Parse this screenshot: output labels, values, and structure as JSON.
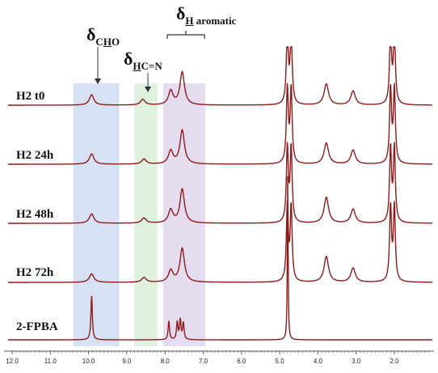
{
  "colors": {
    "trace": "#8b1a1a",
    "highlight_cho": "#c8d8f0",
    "highlight_hcn": "#d4ecd4",
    "highlight_aromatic": "#dcd0ea",
    "axis": "#555555"
  },
  "annotations": {
    "cho": {
      "delta": "δ",
      "sub": "CHO",
      "underline_char": "H"
    },
    "hcn": {
      "delta": "δ",
      "sub_u": "H",
      "sub_rest": "C=N"
    },
    "aromatic": {
      "delta": "δ",
      "sub_u": "H",
      "sub_rest": " aromatic"
    }
  },
  "chart_data": {
    "type": "line",
    "title": "",
    "xlabel": "",
    "ylabel": "",
    "x_reversed": true,
    "xlim": [
      12.3,
      1.3
    ],
    "x_ticks": [
      "12.0",
      "11.0",
      "10.0",
      "9.0",
      "8.0",
      "7.0",
      "6.0",
      "5.0",
      "4.0",
      "3.0",
      "2.0"
    ],
    "highlight_regions": [
      {
        "name": "CHO",
        "x": [
          10.4,
          9.2
        ]
      },
      {
        "name": "HC=N",
        "x": [
          8.8,
          8.2
        ]
      },
      {
        "name": "H aromatic",
        "x": [
          8.05,
          6.95
        ]
      }
    ],
    "series": [
      {
        "name": "H2 t0",
        "peaks": [
          {
            "ppm": 9.92,
            "h": 0.22
          },
          {
            "ppm": 8.58,
            "h": 0.12
          },
          {
            "ppm": 7.85,
            "h": 0.3
          },
          {
            "ppm": 7.55,
            "h": 0.7
          },
          {
            "ppm": 4.8,
            "h": 1.6
          },
          {
            "ppm": 4.7,
            "h": 1.6
          },
          {
            "ppm": 3.78,
            "h": 0.45
          },
          {
            "ppm": 3.08,
            "h": 0.3
          },
          {
            "ppm": 2.1,
            "h": 1.6
          },
          {
            "ppm": 2.0,
            "h": 1.6
          }
        ]
      },
      {
        "name": "H2 24h",
        "peaks": [
          {
            "ppm": 9.92,
            "h": 0.22
          },
          {
            "ppm": 8.55,
            "h": 0.11
          },
          {
            "ppm": 7.85,
            "h": 0.28
          },
          {
            "ppm": 7.55,
            "h": 0.72
          },
          {
            "ppm": 4.8,
            "h": 1.6
          },
          {
            "ppm": 4.7,
            "h": 1.6
          },
          {
            "ppm": 3.78,
            "h": 0.45
          },
          {
            "ppm": 3.08,
            "h": 0.3
          },
          {
            "ppm": 2.1,
            "h": 1.6
          },
          {
            "ppm": 2.0,
            "h": 1.6
          }
        ]
      },
      {
        "name": "H2 48h",
        "peaks": [
          {
            "ppm": 9.92,
            "h": 0.2
          },
          {
            "ppm": 8.55,
            "h": 0.11
          },
          {
            "ppm": 7.85,
            "h": 0.28
          },
          {
            "ppm": 7.55,
            "h": 0.72
          },
          {
            "ppm": 4.8,
            "h": 1.6
          },
          {
            "ppm": 4.7,
            "h": 1.6
          },
          {
            "ppm": 3.78,
            "h": 0.55
          },
          {
            "ppm": 3.08,
            "h": 0.3
          },
          {
            "ppm": 2.1,
            "h": 1.6
          },
          {
            "ppm": 2.0,
            "h": 1.6
          }
        ]
      },
      {
        "name": "H2 72h",
        "peaks": [
          {
            "ppm": 9.92,
            "h": 0.18
          },
          {
            "ppm": 8.55,
            "h": 0.1
          },
          {
            "ppm": 7.85,
            "h": 0.25
          },
          {
            "ppm": 7.55,
            "h": 0.72
          },
          {
            "ppm": 4.8,
            "h": 1.6
          },
          {
            "ppm": 4.7,
            "h": 1.6
          },
          {
            "ppm": 3.78,
            "h": 0.55
          },
          {
            "ppm": 3.08,
            "h": 0.3
          },
          {
            "ppm": 2.1,
            "h": 1.6
          },
          {
            "ppm": 2.0,
            "h": 1.6
          }
        ]
      },
      {
        "name": "2-FPBA",
        "peaks": [
          {
            "ppm": 9.92,
            "h": 0.95
          },
          {
            "ppm": 7.9,
            "h": 0.4
          },
          {
            "ppm": 7.68,
            "h": 0.38
          },
          {
            "ppm": 7.6,
            "h": 0.42
          },
          {
            "ppm": 7.52,
            "h": 0.36
          },
          {
            "ppm": 4.79,
            "h": 3.5
          }
        ]
      }
    ]
  }
}
